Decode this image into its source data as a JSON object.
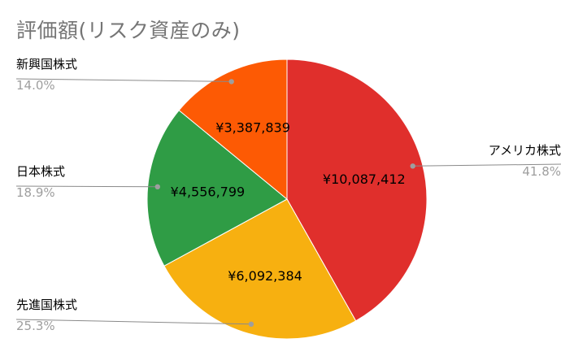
{
  "chart_data": {
    "type": "pie",
    "title": "評価額(リスク資産のみ)",
    "slices": [
      {
        "label": "アメリカ株式",
        "value": 10087412,
        "value_label": "¥10,087,412",
        "percent_label": "41.8%",
        "color": "#e02f2c"
      },
      {
        "label": "先進国株式",
        "value": 6092384,
        "value_label": "¥6,092,384",
        "percent_label": "25.3%",
        "color": "#f7b010"
      },
      {
        "label": "日本株式",
        "value": 4556799,
        "value_label": "¥4,556,799",
        "percent_label": "18.9%",
        "color": "#2f9c45"
      },
      {
        "label": "新興国株式",
        "value": 3387839,
        "value_label": "¥3,387,839",
        "percent_label": "14.0%",
        "color": "#fd5a04"
      }
    ],
    "legend": "callouts"
  }
}
